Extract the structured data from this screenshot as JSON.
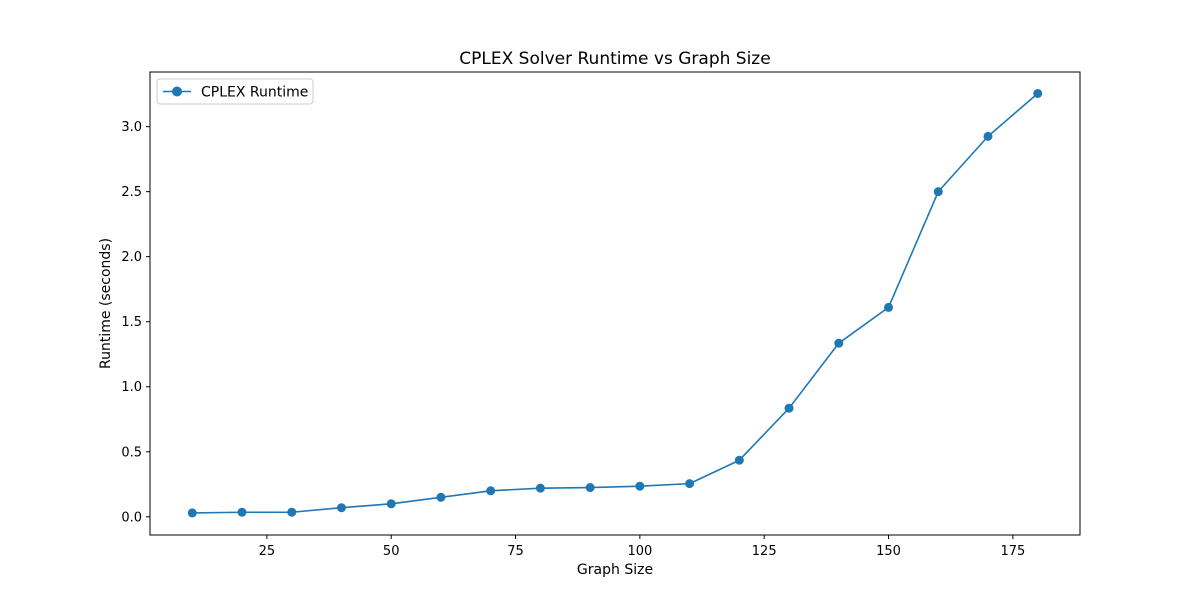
{
  "chart_data": {
    "type": "line",
    "title": "CPLEX Solver Runtime vs Graph Size",
    "xlabel": "Graph Size",
    "ylabel": "Runtime (seconds)",
    "xlim": [
      1.5,
      188.5
    ],
    "ylim": [
      -0.14,
      3.42
    ],
    "xticks": [
      25,
      50,
      75,
      100,
      125,
      150,
      175
    ],
    "xtick_labels": [
      "25",
      "50",
      "75",
      "100",
      "125",
      "150",
      "175"
    ],
    "yticks": [
      0.0,
      0.5,
      1.0,
      1.5,
      2.0,
      2.5,
      3.0
    ],
    "ytick_labels": [
      "0.0",
      "0.5",
      "1.0",
      "1.5",
      "2.0",
      "2.5",
      "3.0"
    ],
    "grid": false,
    "legend_position": "upper-left",
    "series": [
      {
        "name": "CPLEX Runtime",
        "color": "#1f77b4",
        "marker": "circle",
        "x": [
          10,
          20,
          30,
          40,
          50,
          60,
          70,
          80,
          90,
          100,
          110,
          120,
          130,
          140,
          150,
          160,
          170,
          180
        ],
        "y": [
          0.03,
          0.035,
          0.035,
          0.07,
          0.1,
          0.15,
          0.2,
          0.22,
          0.225,
          0.235,
          0.255,
          0.435,
          0.835,
          1.335,
          1.61,
          2.5,
          2.925,
          3.255
        ]
      }
    ]
  }
}
